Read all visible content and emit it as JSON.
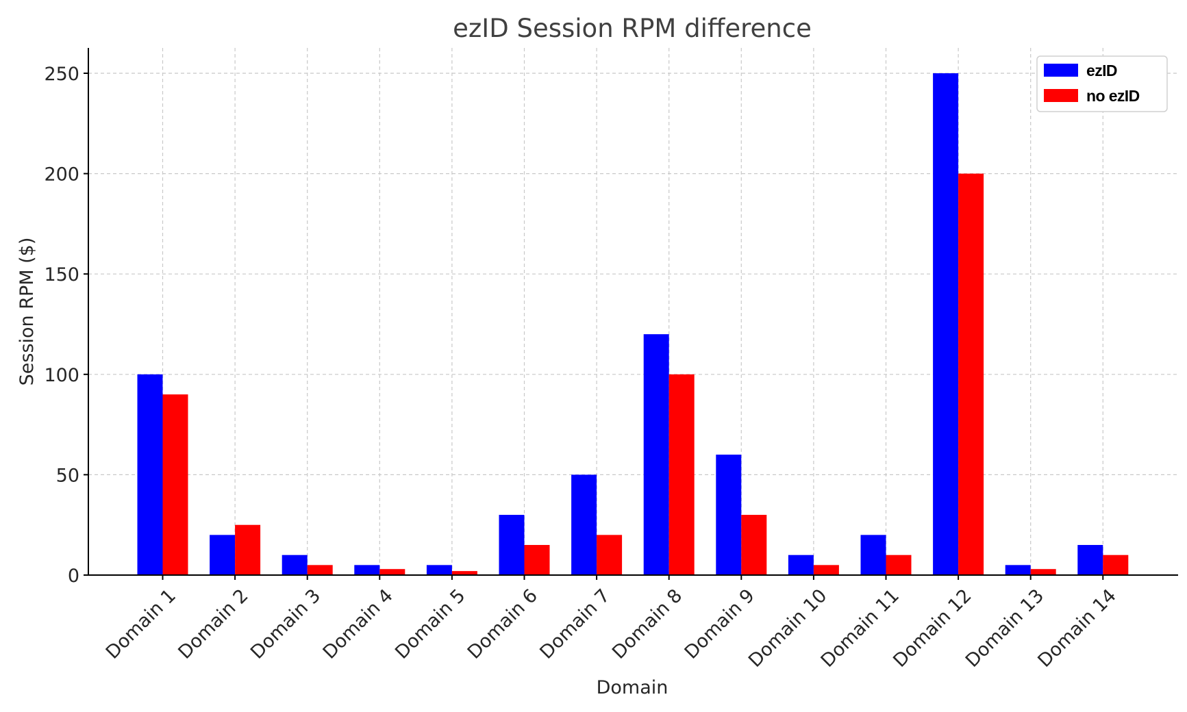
{
  "chart_data": {
    "type": "bar",
    "title": "ezID Session RPM difference",
    "xlabel": "Domain",
    "ylabel": "Session RPM ($)",
    "categories": [
      "Domain 1",
      "Domain 2",
      "Domain 3",
      "Domain 4",
      "Domain 5",
      "Domain 6",
      "Domain 7",
      "Domain 8",
      "Domain 9",
      "Domain 10",
      "Domain 11",
      "Domain 12",
      "Domain 13",
      "Domain 14"
    ],
    "series": [
      {
        "name": "ezID",
        "color": "#0000ff",
        "values": [
          100,
          20,
          10,
          5,
          5,
          30,
          50,
          120,
          60,
          10,
          20,
          250,
          5,
          15
        ]
      },
      {
        "name": "no ezID",
        "color": "#ff0000",
        "values": [
          90,
          25,
          5,
          3,
          2,
          15,
          20,
          100,
          30,
          5,
          10,
          200,
          3,
          10
        ]
      }
    ],
    "ylim": [
      0,
      262
    ],
    "yticks": [
      0,
      50,
      100,
      150,
      200,
      250
    ],
    "grid": true,
    "legend": "top-right"
  }
}
